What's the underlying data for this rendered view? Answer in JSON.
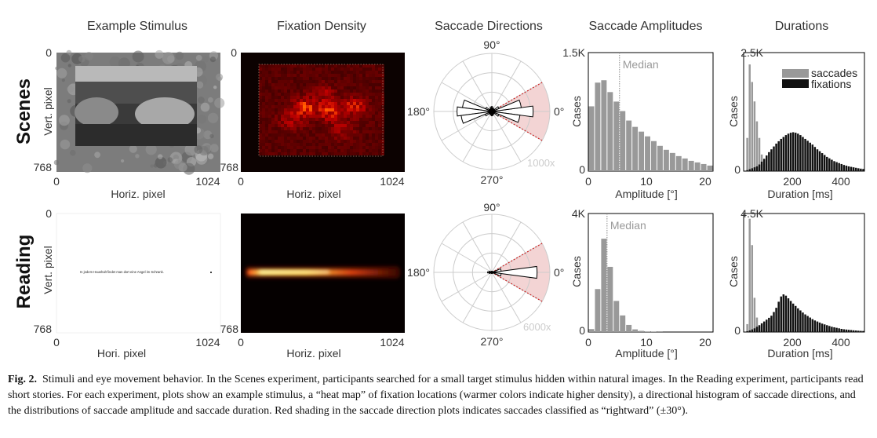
{
  "figure": {
    "column_titles": [
      "Example Stimulus",
      "Fixation Density",
      "Saccade Directions",
      "Saccade Amplitudes",
      "Durations"
    ],
    "row_labels": [
      "Scenes",
      "Reading"
    ],
    "caption_label": "Fig. 2.",
    "caption_text": "Stimuli and eye movement behavior. In the Scenes experiment, participants searched for a small target stimulus hidden within natural images. In the Reading experiment, participants read short stories. For each experiment, plots show an example stimulus, a “heat map” of fixation locations (warmer colors indicate higher density), a directional histogram of saccade directions, and the distributions of saccade amplitude and saccade duration. Red shading in the saccade direction plots indicates saccades classified as “rightward” (±30°).",
    "reading_sentence": "In jedem Haushalt findet man dort eine Angel im Schrank."
  },
  "chart_data": [
    {
      "type": "image",
      "name": "scenes-stimulus",
      "xlabel": "Horiz. pixel",
      "ylabel": "Vert. pixel",
      "xticks": [
        "0",
        "1024"
      ],
      "yticks": [
        "0",
        "768"
      ],
      "xlim": [
        0,
        1024
      ],
      "ylim": [
        0,
        768
      ]
    },
    {
      "type": "heatmap",
      "name": "scenes-fixation-density",
      "xlabel": "Horiz. pixel",
      "ylabel": "",
      "xticks": [
        "0",
        "1024"
      ],
      "yticks": [
        "0",
        "768"
      ],
      "xlim": [
        0,
        1024
      ],
      "ylim": [
        0,
        768
      ]
    },
    {
      "type": "polar",
      "name": "scenes-saccade-directions",
      "angle_labels": [
        "90°",
        "180°",
        "0°",
        "270°"
      ],
      "radius_label": "1000x",
      "rightward_range_deg": [
        -30,
        30
      ],
      "bin_width_deg": 15,
      "bins_deg": [
        0,
        15,
        30,
        45,
        60,
        75,
        90,
        105,
        120,
        135,
        150,
        165,
        180,
        195,
        210,
        225,
        240,
        255,
        270,
        285,
        300,
        315,
        330,
        345
      ],
      "counts": [
        3200,
        2300,
        600,
        250,
        200,
        300,
        380,
        330,
        220,
        240,
        520,
        2300,
        2700,
        2400,
        560,
        260,
        200,
        280,
        340,
        300,
        190,
        240,
        600,
        2200
      ]
    },
    {
      "type": "bar",
      "name": "scenes-saccade-amplitudes",
      "xlabel": "Amplitude [°]",
      "ylabel": "Cases",
      "yticks": [
        "0",
        "1.5K"
      ],
      "xticks": [
        "0",
        "10",
        "20"
      ],
      "xlim": [
        0,
        20
      ],
      "ylim": [
        0,
        1500
      ],
      "median": 5,
      "median_label": "Median",
      "bin_width": 1,
      "bin_starts": [
        0,
        1,
        2,
        3,
        4,
        5,
        6,
        7,
        8,
        9,
        10,
        11,
        12,
        13,
        14,
        15,
        16,
        17,
        18,
        19
      ],
      "values": [
        820,
        1120,
        1150,
        1000,
        880,
        760,
        640,
        560,
        500,
        440,
        380,
        320,
        270,
        230,
        190,
        160,
        130,
        110,
        90,
        70
      ]
    },
    {
      "type": "bar",
      "name": "scenes-durations",
      "xlabel": "Duration [ms]",
      "ylabel": "Cases",
      "yticks": [
        "0",
        "2.5K"
      ],
      "xticks": [
        "200",
        "400"
      ],
      "xlim": [
        0,
        500
      ],
      "ylim": [
        0,
        2500
      ],
      "legend": [
        "saccades",
        "fixations"
      ],
      "legend_position": "top-right",
      "bin_width": 10,
      "series": [
        {
          "name": "saccades",
          "color": "#999999",
          "bin_starts": [
            10,
            20,
            30,
            40,
            50,
            60,
            70,
            80,
            90
          ],
          "values": [
            700,
            2250,
            1880,
            1470,
            1050,
            700,
            350,
            150,
            60
          ]
        },
        {
          "name": "fixations",
          "color": "#111111",
          "bin_starts": [
            10,
            20,
            30,
            40,
            50,
            60,
            70,
            80,
            90,
            100,
            110,
            120,
            130,
            140,
            150,
            160,
            170,
            180,
            190,
            200,
            210,
            220,
            230,
            240,
            250,
            260,
            270,
            280,
            290,
            300,
            310,
            320,
            330,
            340,
            350,
            360,
            370,
            380,
            390,
            400,
            410,
            420,
            430,
            440,
            450,
            460,
            470,
            480,
            490
          ],
          "values": [
            20,
            40,
            60,
            80,
            100,
            140,
            200,
            260,
            330,
            400,
            460,
            520,
            580,
            630,
            680,
            720,
            760,
            790,
            810,
            820,
            810,
            790,
            760,
            720,
            680,
            640,
            600,
            560,
            510,
            460,
            420,
            380,
            340,
            300,
            270,
            240,
            210,
            190,
            170,
            150,
            130,
            115,
            100,
            90,
            80,
            70,
            60,
            52,
            45
          ]
        }
      ]
    },
    {
      "type": "image",
      "name": "reading-stimulus",
      "xlabel": "Hori. pixel",
      "ylabel": "Vert. pixel",
      "xticks": [
        "0",
        "1024"
      ],
      "yticks": [
        "0",
        "768"
      ],
      "xlim": [
        0,
        1024
      ],
      "ylim": [
        0,
        768
      ]
    },
    {
      "type": "heatmap",
      "name": "reading-fixation-density",
      "xlabel": "Horiz. pixel",
      "ylabel": "",
      "xticks": [
        "0",
        "1024"
      ],
      "yticks": [
        "768"
      ],
      "xlim": [
        0,
        1024
      ],
      "ylim": [
        0,
        768
      ]
    },
    {
      "type": "polar",
      "name": "reading-saccade-directions",
      "angle_labels": [
        "90°",
        "180°",
        "0°",
        "270°"
      ],
      "radius_label": "6000x",
      "rightward_range_deg": [
        -30,
        30
      ],
      "bin_width_deg": 15,
      "bins_deg": [
        0,
        15,
        30,
        45,
        60,
        75,
        90,
        105,
        120,
        135,
        150,
        165,
        180,
        195,
        210,
        225,
        240,
        255,
        270,
        285,
        300,
        315,
        330,
        345
      ],
      "counts": [
        5300,
        1100,
        150,
        60,
        40,
        40,
        40,
        40,
        40,
        60,
        150,
        350,
        500,
        350,
        150,
        60,
        40,
        40,
        40,
        40,
        40,
        60,
        150,
        1100
      ]
    },
    {
      "type": "bar",
      "name": "reading-saccade-amplitudes",
      "xlabel": "Amplitude [°]",
      "ylabel": "Cases",
      "yticks": [
        "0",
        "4K"
      ],
      "xticks": [
        "0",
        "10",
        "20"
      ],
      "xlim": [
        0,
        20
      ],
      "ylim": [
        0,
        4000
      ],
      "median": 3,
      "median_label": "Median",
      "bin_width": 1,
      "bin_starts": [
        0,
        1,
        2,
        3,
        4,
        5,
        6,
        7,
        8,
        9,
        10,
        11,
        12,
        13,
        14,
        15,
        16,
        17,
        18,
        19
      ],
      "values": [
        100,
        1450,
        3150,
        2200,
        1050,
        560,
        240,
        90,
        40,
        20,
        10,
        5,
        0,
        0,
        0,
        0,
        0,
        0,
        0,
        0
      ]
    },
    {
      "type": "bar",
      "name": "reading-durations",
      "xlabel": "Duration [ms]",
      "ylabel": "Cases",
      "yticks": [
        "0",
        "4.5K"
      ],
      "xticks": [
        "200",
        "400"
      ],
      "xlim": [
        0,
        500
      ],
      "ylim": [
        0,
        4500
      ],
      "bin_width": 10,
      "series": [
        {
          "name": "saccades",
          "color": "#999999",
          "bin_starts": [
            10,
            20,
            30,
            40,
            50,
            60,
            70
          ],
          "values": [
            300,
            4300,
            3300,
            1300,
            550,
            200,
            80
          ]
        },
        {
          "name": "fixations",
          "color": "#111111",
          "bin_starts": [
            10,
            20,
            30,
            40,
            50,
            60,
            70,
            80,
            90,
            100,
            110,
            120,
            130,
            140,
            150,
            160,
            170,
            180,
            190,
            200,
            210,
            220,
            230,
            240,
            250,
            260,
            270,
            280,
            290,
            300,
            310,
            320,
            330,
            340,
            350,
            360,
            370,
            380,
            390,
            400,
            410,
            420,
            430,
            440,
            450,
            460,
            470,
            480,
            490
          ],
          "values": [
            30,
            60,
            100,
            140,
            200,
            260,
            330,
            400,
            470,
            540,
            620,
            760,
            920,
            1150,
            1350,
            1430,
            1380,
            1280,
            1180,
            1080,
            990,
            900,
            820,
            740,
            670,
            610,
            550,
            490,
            440,
            400,
            360,
            320,
            290,
            260,
            230,
            200,
            180,
            160,
            140,
            120,
            105,
            95,
            85,
            75,
            65,
            58,
            50,
            44,
            40
          ]
        }
      ]
    }
  ]
}
